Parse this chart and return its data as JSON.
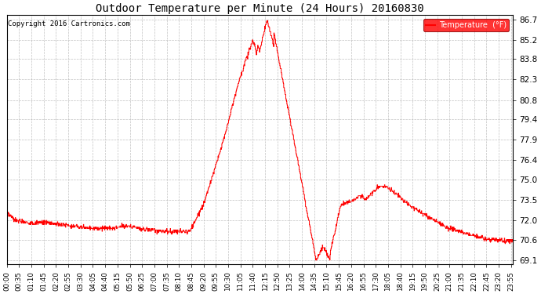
{
  "title": "Outdoor Temperature per Minute (24 Hours) 20160830",
  "copyright": "Copyright 2016 Cartronics.com",
  "legend_label": "Temperature  (°F)",
  "yticks": [
    69.1,
    70.6,
    72.0,
    73.5,
    75.0,
    76.4,
    77.9,
    79.4,
    80.8,
    82.3,
    83.8,
    85.2,
    86.7
  ],
  "ymin": 68.8,
  "ymax": 87.0,
  "line_color": "red",
  "background_color": "white",
  "grid_color": "#bbbbbb",
  "xtick_step": 35,
  "figwidth": 6.9,
  "figheight": 3.75,
  "dpi": 100
}
